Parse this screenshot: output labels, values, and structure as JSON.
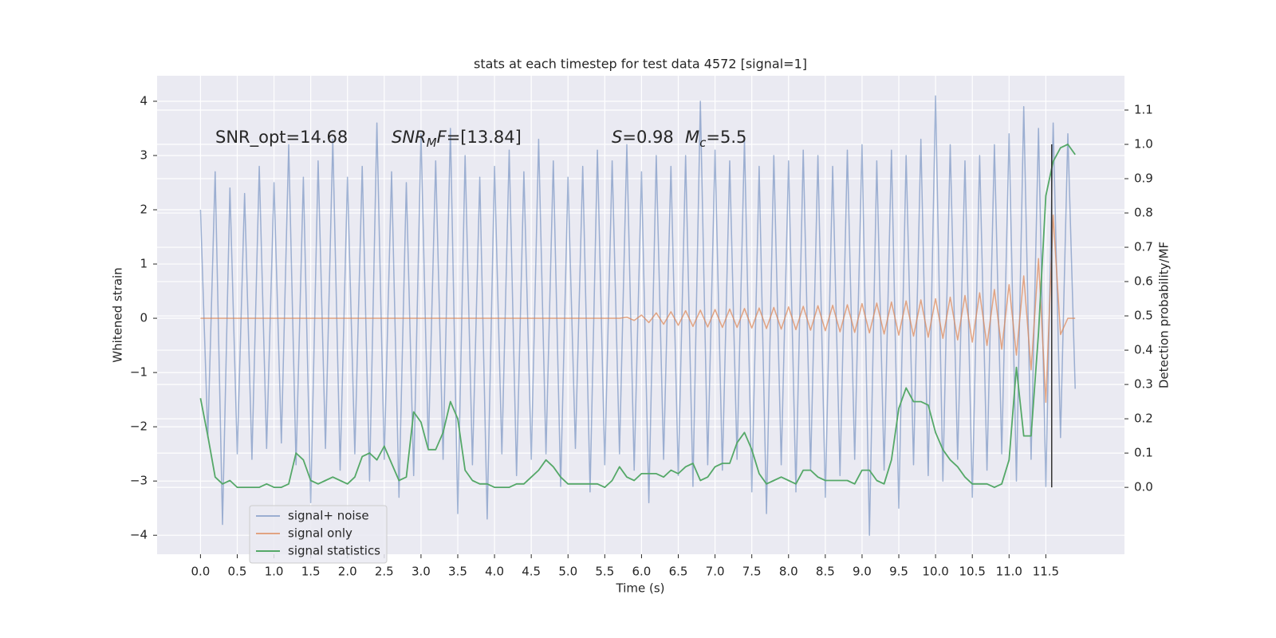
{
  "chart_data": {
    "type": "line",
    "title": "stats at each timestep for test data 4572 [signal=1]",
    "xlabel": "Time (s)",
    "ylabel": "Whitened strain",
    "y2label": "Detection probability/MF",
    "annotations": [
      [
        {
          "text": "SNR_opt=14.68"
        }
      ],
      [
        {
          "text": "SNR",
          "italic": true
        },
        {
          "text": "M",
          "italic": true,
          "sub": true
        },
        {
          "text": "F",
          "italic": true
        },
        {
          "text": "=[13.84]"
        }
      ],
      [
        {
          "text": "S",
          "italic": true
        },
        {
          "text": "=0.98"
        }
      ],
      [
        {
          "text": "M",
          "italic": true
        },
        {
          "text": "c",
          "italic": true,
          "sub": true
        },
        {
          "text": "=5.5"
        }
      ]
    ],
    "x": [
      0.0,
      0.1,
      0.2,
      0.3,
      0.4,
      0.5,
      0.6,
      0.7,
      0.8,
      0.9,
      1.0,
      1.1,
      1.2,
      1.3,
      1.4,
      1.5,
      1.6,
      1.7,
      1.8,
      1.9,
      2.0,
      2.1,
      2.2,
      2.3,
      2.4,
      2.5,
      2.6,
      2.7,
      2.8,
      2.9,
      3.0,
      3.1,
      3.2,
      3.3,
      3.4,
      3.5,
      3.6,
      3.7,
      3.8,
      3.9,
      4.0,
      4.1,
      4.2,
      4.3,
      4.4,
      4.5,
      4.6,
      4.7,
      4.8,
      4.9,
      5.0,
      5.1,
      5.2,
      5.3,
      5.4,
      5.5,
      5.6,
      5.7,
      5.8,
      5.9,
      6.0,
      6.1,
      6.2,
      6.3,
      6.4,
      6.5,
      6.6,
      6.7,
      6.8,
      6.9,
      7.0,
      7.1,
      7.2,
      7.3,
      7.4,
      7.5,
      7.6,
      7.7,
      7.8,
      7.9,
      8.0,
      8.1,
      8.2,
      8.3,
      8.4,
      8.5,
      8.6,
      8.7,
      8.8,
      8.9,
      9.0,
      9.1,
      9.2,
      9.3,
      9.4,
      9.5,
      9.6,
      9.7,
      9.8,
      9.9,
      10.0,
      10.1,
      10.2,
      10.3,
      10.4,
      10.5,
      10.6,
      10.7,
      10.8,
      10.9,
      11.0,
      11.1,
      11.2,
      11.3,
      11.4,
      11.5,
      11.6,
      11.7,
      11.8,
      11.9
    ],
    "series": [
      {
        "name": "signal+ noise",
        "color": "#4c72b0",
        "opacity": 0.5,
        "values": [
          2.0,
          -2.2,
          2.7,
          -3.8,
          2.4,
          -2.5,
          2.3,
          -2.6,
          2.8,
          -2.4,
          2.5,
          -2.3,
          3.2,
          -2.7,
          2.6,
          -3.4,
          2.9,
          -2.4,
          3.3,
          -2.8,
          2.6,
          -2.5,
          2.8,
          -3.0,
          3.6,
          -2.6,
          2.7,
          -3.3,
          2.5,
          -2.9,
          3.4,
          -2.4,
          2.9,
          -2.6,
          3.5,
          -3.6,
          3.0,
          -2.7,
          2.6,
          -3.7,
          2.8,
          -2.5,
          3.1,
          -2.9,
          2.7,
          -2.6,
          3.3,
          -2.5,
          2.9,
          -3.1,
          2.6,
          -2.4,
          2.8,
          -3.2,
          3.1,
          -2.7,
          2.9,
          -2.5,
          3.2,
          -2.8,
          2.7,
          -3.4,
          3.0,
          -2.6,
          2.8,
          -2.9,
          3.0,
          -3.1,
          4.0,
          -2.7,
          3.1,
          -2.8,
          2.9,
          -2.6,
          3.3,
          -3.2,
          2.8,
          -3.6,
          3.0,
          -2.7,
          2.9,
          -3.2,
          3.1,
          -2.8,
          3.0,
          -3.3,
          2.8,
          -2.9,
          3.1,
          -2.6,
          3.2,
          -4.0,
          2.9,
          -2.8,
          3.1,
          -3.5,
          3.0,
          -2.7,
          3.3,
          -2.9,
          4.1,
          -3.0,
          3.2,
          -2.6,
          2.9,
          -3.3,
          3.0,
          -2.8,
          3.2,
          -2.5,
          3.4,
          -3.0,
          3.9,
          -2.6,
          3.5,
          -3.1,
          3.6,
          -2.2,
          3.4,
          -1.3
        ]
      },
      {
        "name": "signal only",
        "color": "#dd8452",
        "opacity": 0.7,
        "values": [
          0,
          0,
          0,
          0,
          0,
          0,
          0,
          0,
          0,
          0,
          0,
          0,
          0,
          0,
          0,
          0,
          0,
          0,
          0,
          0,
          0,
          0,
          0,
          0,
          0,
          0,
          0,
          0,
          0,
          0,
          0,
          0,
          0,
          0,
          0,
          0,
          0,
          0,
          0,
          0,
          0,
          0,
          0,
          0,
          0,
          0,
          0,
          0,
          0,
          0,
          0,
          0,
          0,
          0,
          0,
          0,
          0,
          0,
          0.02,
          -0.04,
          0.06,
          -0.08,
          0.1,
          -0.11,
          0.12,
          -0.13,
          0.14,
          -0.15,
          0.15,
          -0.16,
          0.16,
          -0.17,
          0.17,
          -0.17,
          0.18,
          -0.18,
          0.19,
          -0.19,
          0.2,
          -0.2,
          0.21,
          -0.21,
          0.22,
          -0.22,
          0.23,
          -0.23,
          0.24,
          -0.25,
          0.25,
          -0.26,
          0.27,
          -0.27,
          0.28,
          -0.29,
          0.3,
          -0.31,
          0.32,
          -0.33,
          0.34,
          -0.35,
          0.36,
          -0.37,
          0.39,
          -0.4,
          0.42,
          -0.44,
          0.47,
          -0.5,
          0.53,
          -0.57,
          0.62,
          -0.68,
          0.78,
          -0.95,
          1.1,
          -1.55,
          1.9,
          -0.3,
          0,
          0
        ]
      },
      {
        "name": "signal statistics",
        "color": "#55a868",
        "opacity": 1,
        "axis": "y2",
        "values": [
          0.26,
          0.15,
          0.03,
          0.01,
          0.02,
          0.0,
          0.0,
          0.0,
          0.0,
          0.01,
          0.0,
          0.0,
          0.01,
          0.1,
          0.08,
          0.02,
          0.01,
          0.02,
          0.03,
          0.02,
          0.01,
          0.03,
          0.09,
          0.1,
          0.08,
          0.12,
          0.07,
          0.02,
          0.03,
          0.22,
          0.19,
          0.11,
          0.11,
          0.16,
          0.25,
          0.2,
          0.05,
          0.02,
          0.01,
          0.01,
          0.0,
          0.0,
          0.0,
          0.01,
          0.01,
          0.03,
          0.05,
          0.08,
          0.06,
          0.03,
          0.01,
          0.01,
          0.01,
          0.01,
          0.01,
          0.0,
          0.02,
          0.06,
          0.03,
          0.02,
          0.04,
          0.04,
          0.04,
          0.03,
          0.05,
          0.04,
          0.06,
          0.07,
          0.02,
          0.03,
          0.06,
          0.07,
          0.07,
          0.13,
          0.16,
          0.11,
          0.04,
          0.01,
          0.02,
          0.03,
          0.02,
          0.01,
          0.05,
          0.05,
          0.03,
          0.02,
          0.02,
          0.02,
          0.02,
          0.01,
          0.05,
          0.05,
          0.02,
          0.01,
          0.08,
          0.23,
          0.29,
          0.25,
          0.25,
          0.24,
          0.16,
          0.11,
          0.08,
          0.06,
          0.03,
          0.01,
          0.01,
          0.01,
          0.0,
          0.01,
          0.08,
          0.35,
          0.15,
          0.15,
          0.45,
          0.85,
          0.95,
          0.99,
          1.0,
          0.97
        ]
      }
    ],
    "vlines": [
      {
        "x": 11.58,
        "y2range": [
          0,
          1
        ],
        "color": "#333333"
      }
    ],
    "xlim": [
      -0.59,
      12.57
    ],
    "ylim": [
      -4.35,
      4.47
    ],
    "y2lim": [
      -0.195,
      1.2
    ],
    "xticks": [
      {
        "value": 0,
        "label": "0.0"
      },
      0.5,
      {
        "value": 1,
        "label": "1.0"
      },
      1.5,
      {
        "value": 2,
        "label": "2.0"
      },
      2.5,
      {
        "value": 3,
        "label": "3.0"
      },
      3.5,
      {
        "value": 4,
        "label": "4.0"
      },
      4.5,
      {
        "value": 5,
        "label": "5.0"
      },
      5.5,
      {
        "value": 6,
        "label": "6.0"
      },
      6.5,
      {
        "value": 7,
        "label": "7.0"
      },
      7.5,
      {
        "value": 8,
        "label": "8.0"
      },
      8.5,
      {
        "value": 9,
        "label": "9.0"
      },
      9.5,
      {
        "value": 10,
        "label": "10.0"
      },
      10.5,
      {
        "value": 11,
        "label": "11.0"
      },
      11.5
    ],
    "yticks": [
      {
        "value": -4,
        "label": "−4"
      },
      {
        "value": -3,
        "label": "−3"
      },
      {
        "value": -2,
        "label": "−2"
      },
      {
        "value": -1,
        "label": "−1"
      },
      0,
      1,
      2,
      3,
      4
    ],
    "y2ticks": [
      {
        "value": 0,
        "label": "0.0"
      },
      0.1,
      0.2,
      0.3,
      0.4,
      0.5,
      0.6,
      0.7,
      0.8,
      0.9,
      {
        "value": 1,
        "label": "1.0"
      },
      1.1
    ],
    "grid": true,
    "legend": "lower left"
  }
}
